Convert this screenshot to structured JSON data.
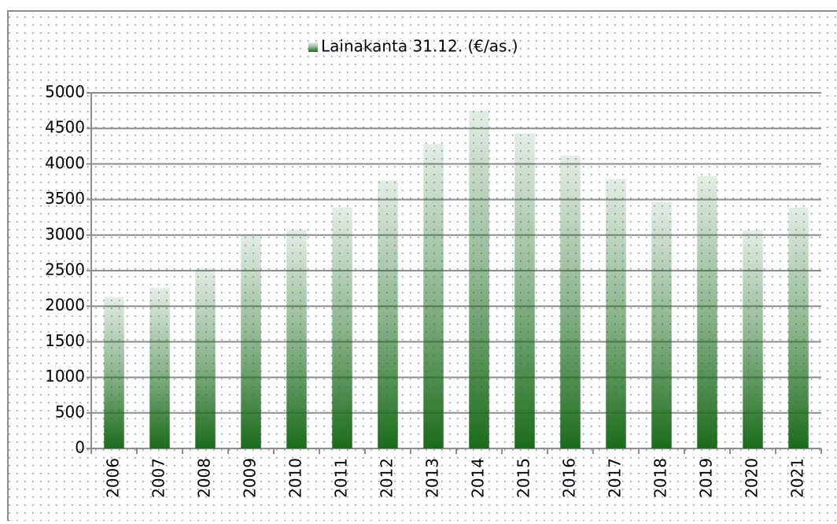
{
  "chart_data": {
    "type": "bar",
    "categories": [
      "2006",
      "2007",
      "2008",
      "2009",
      "2010",
      "2011",
      "2012",
      "2013",
      "2014",
      "2015",
      "2016",
      "2017",
      "2018",
      "2019",
      "2020",
      "2021"
    ],
    "series": [
      {
        "name": "Lainakanta 31.12. (€/as.)",
        "color": "#1b6b1b",
        "values": [
          2130,
          2260,
          2530,
          3000,
          3080,
          3390,
          3770,
          4280,
          4750,
          4430,
          4120,
          3790,
          3470,
          3830,
          3070,
          3390
        ]
      }
    ],
    "ylim": [
      0,
      5000
    ],
    "yticks": [
      0,
      500,
      1000,
      1500,
      2000,
      2500,
      3000,
      3500,
      4000,
      4500,
      5000
    ],
    "grid": true,
    "legend": "top"
  }
}
